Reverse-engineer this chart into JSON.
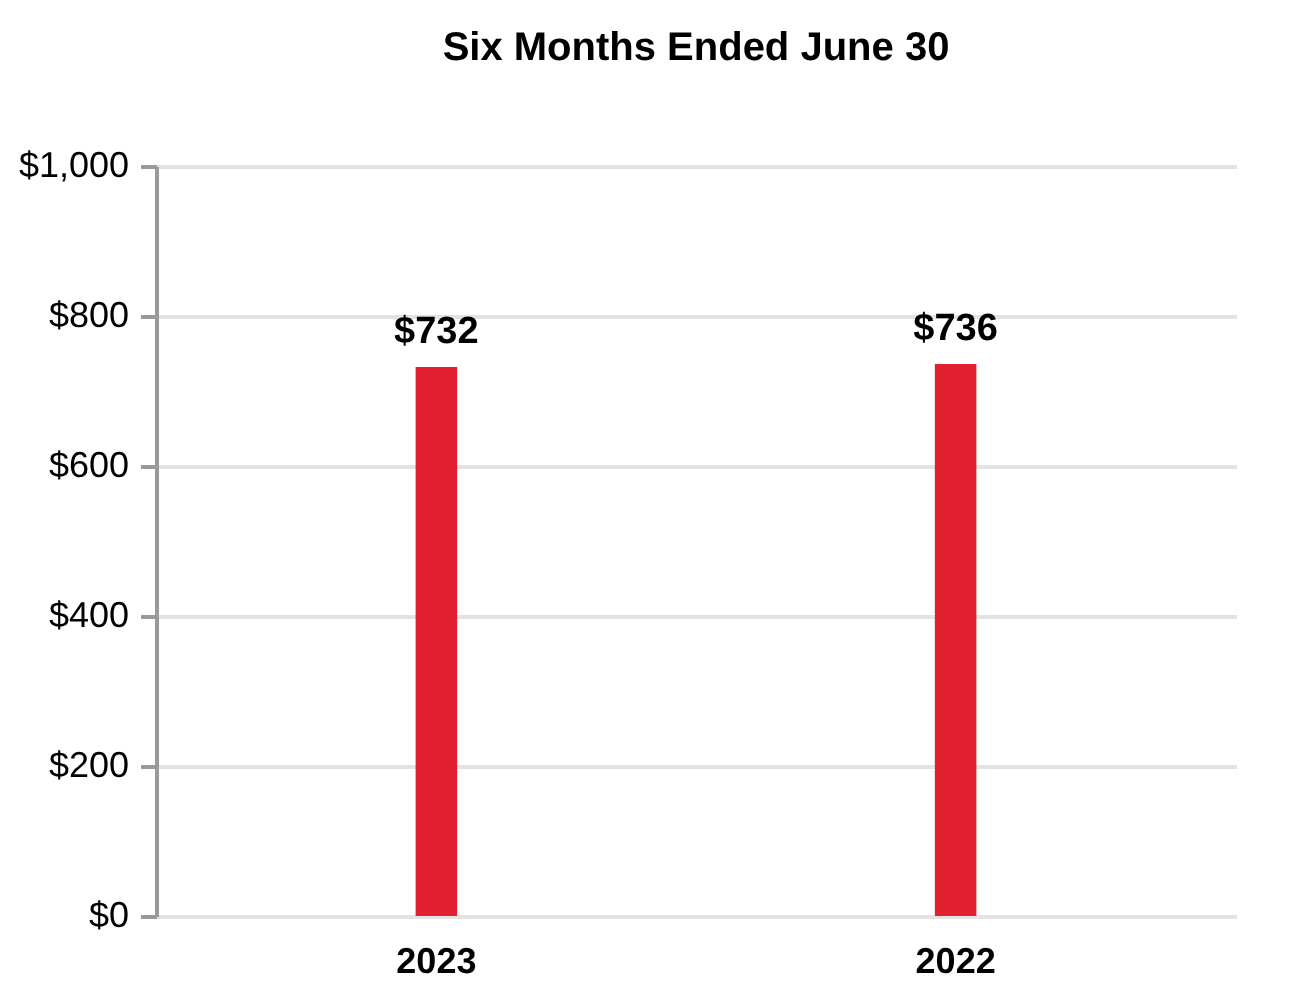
{
  "chart_data": {
    "type": "bar",
    "title": "Six Months Ended June 30",
    "categories": [
      "2023",
      "2022"
    ],
    "values": [
      732,
      736
    ],
    "color": "#e0202e",
    "ylim": [
      0,
      1000
    ],
    "yticks": [
      {
        "value": 0,
        "label": "$0"
      },
      {
        "value": 200,
        "label": "$200"
      },
      {
        "value": 400,
        "label": "$400"
      },
      {
        "value": 600,
        "label": "$600"
      },
      {
        "value": 800,
        "label": "$800"
      },
      {
        "value": 1000,
        "label": "$1,000"
      }
    ],
    "grid": "y",
    "value_labels": [
      "$732",
      "$736"
    ]
  }
}
